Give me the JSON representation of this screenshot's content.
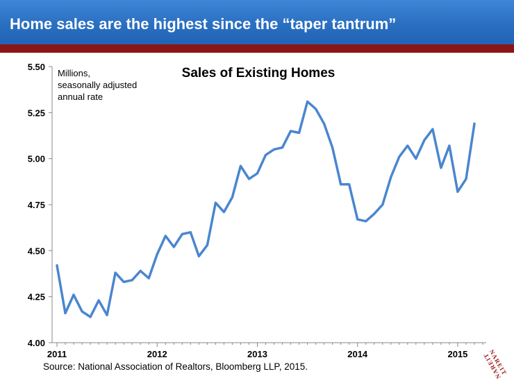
{
  "header": {
    "title": "Home sales are the highest since the “taper tantrum”"
  },
  "source": "Source: National Association of Realtors, Bloomberg LLP, 2015.",
  "logo": {
    "text": "NAREIT",
    "color": "#9b1c1c"
  },
  "colors": {
    "banner": "#2a6fc1",
    "stripe": "#8c1515",
    "line": "#4a86cf"
  },
  "chart_data": {
    "type": "line",
    "title": "Sales of Existing Homes",
    "unit_note": [
      "Millions,",
      "seasonally adjusted",
      "annual rate"
    ],
    "xlabel": "",
    "ylabel": "",
    "ylim": [
      4.0,
      5.5
    ],
    "yticks": [
      "4.00",
      "4.25",
      "4.50",
      "4.75",
      "5.00",
      "5.25",
      "5.50"
    ],
    "xticks": [
      "2011",
      "2012",
      "2013",
      "2014",
      "2015"
    ],
    "grid": false,
    "series": [
      {
        "color": "#4a86cf",
        "x": [
          "2011-01",
          "2011-02",
          "2011-03",
          "2011-04",
          "2011-05",
          "2011-06",
          "2011-07",
          "2011-08",
          "2011-09",
          "2011-10",
          "2011-11",
          "2011-12",
          "2012-01",
          "2012-02",
          "2012-03",
          "2012-04",
          "2012-05",
          "2012-06",
          "2012-07",
          "2012-08",
          "2012-09",
          "2012-10",
          "2012-11",
          "2012-12",
          "2013-01",
          "2013-02",
          "2013-03",
          "2013-04",
          "2013-05",
          "2013-06",
          "2013-07",
          "2013-08",
          "2013-09",
          "2013-10",
          "2013-11",
          "2013-12",
          "2014-01",
          "2014-02",
          "2014-03",
          "2014-04",
          "2014-05",
          "2014-06",
          "2014-07",
          "2014-08",
          "2014-09",
          "2014-10",
          "2014-11",
          "2014-12",
          "2015-01",
          "2015-02",
          "2015-03"
        ],
        "values": [
          4.42,
          4.16,
          4.26,
          4.17,
          4.14,
          4.23,
          4.15,
          4.38,
          4.33,
          4.34,
          4.39,
          4.35,
          4.48,
          4.58,
          4.52,
          4.59,
          4.6,
          4.47,
          4.53,
          4.76,
          4.71,
          4.79,
          4.96,
          4.89,
          4.92,
          5.02,
          5.05,
          5.06,
          5.15,
          5.14,
          5.31,
          5.27,
          5.19,
          5.06,
          4.86,
          4.86,
          4.67,
          4.66,
          4.7,
          4.75,
          4.9,
          5.01,
          5.07,
          5.0,
          5.1,
          5.16,
          4.95,
          5.07,
          4.82,
          4.89,
          5.19
        ]
      }
    ]
  }
}
